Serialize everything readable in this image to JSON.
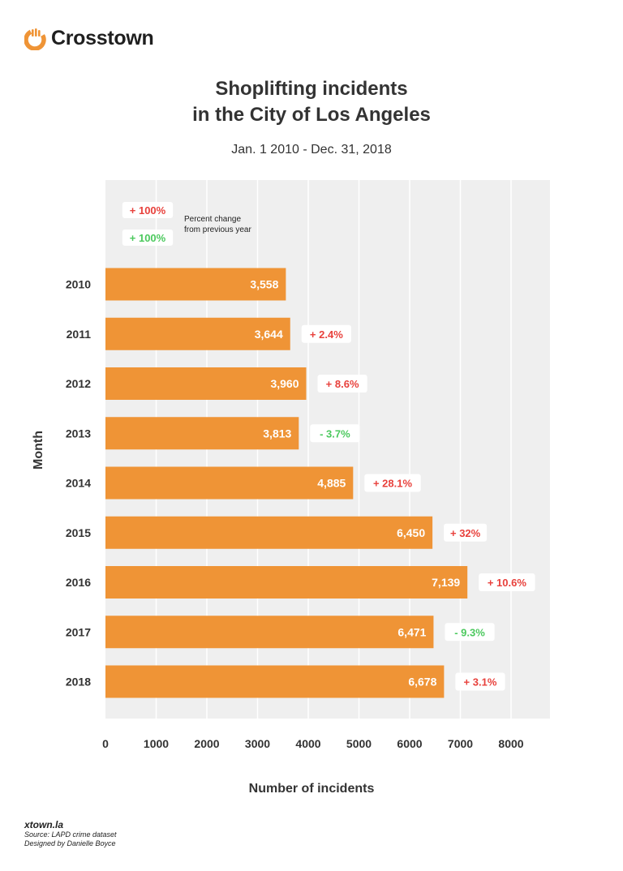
{
  "logo": {
    "text": "Crosstown",
    "color": "#ef9436"
  },
  "title_line1": "Shoplifting incidents",
  "title_line2": "in the City of Los Angeles",
  "subtitle": "Jan. 1 2010 - Dec. 31, 2018",
  "legend": {
    "increase_label": "+ 100%",
    "decrease_label": "+ 100%",
    "desc_line1": "Percent change",
    "desc_line2": "from previous year"
  },
  "colors": {
    "bar": "#ef9436",
    "plot_bg": "#efefef",
    "increase": "#e8413c",
    "decrease": "#4cc95e"
  },
  "chart_data": {
    "type": "bar",
    "orientation": "horizontal",
    "xlabel": "Number of incidents",
    "ylabel": "Month",
    "xlim": [
      0,
      8800
    ],
    "x_ticks": [
      "0",
      "1000",
      "2000",
      "3000",
      "4000",
      "5000",
      "6000",
      "7000",
      "8000"
    ],
    "grid": true,
    "categories": [
      "2010",
      "2011",
      "2012",
      "2013",
      "2014",
      "2015",
      "2016",
      "2017",
      "2018"
    ],
    "values": [
      3558,
      3644,
      3960,
      3813,
      4885,
      6450,
      7139,
      6471,
      6678
    ],
    "value_labels": [
      "3,558",
      "3,644",
      "3,960",
      "3,813",
      "4,885",
      "6,450",
      "7,139",
      "6,471",
      "6,678"
    ],
    "percent_change": [
      "",
      "+ 2.4%",
      "+ 8.6%",
      "- 3.7%",
      "+ 28.1%",
      "+ 32%",
      "+ 10.6%",
      "- 9.3%",
      "+ 3.1%"
    ]
  },
  "footer": {
    "site": "xtown.la",
    "source": "Source: LAPD crime dataset",
    "designer": "Designed by Danielle Boyce"
  }
}
